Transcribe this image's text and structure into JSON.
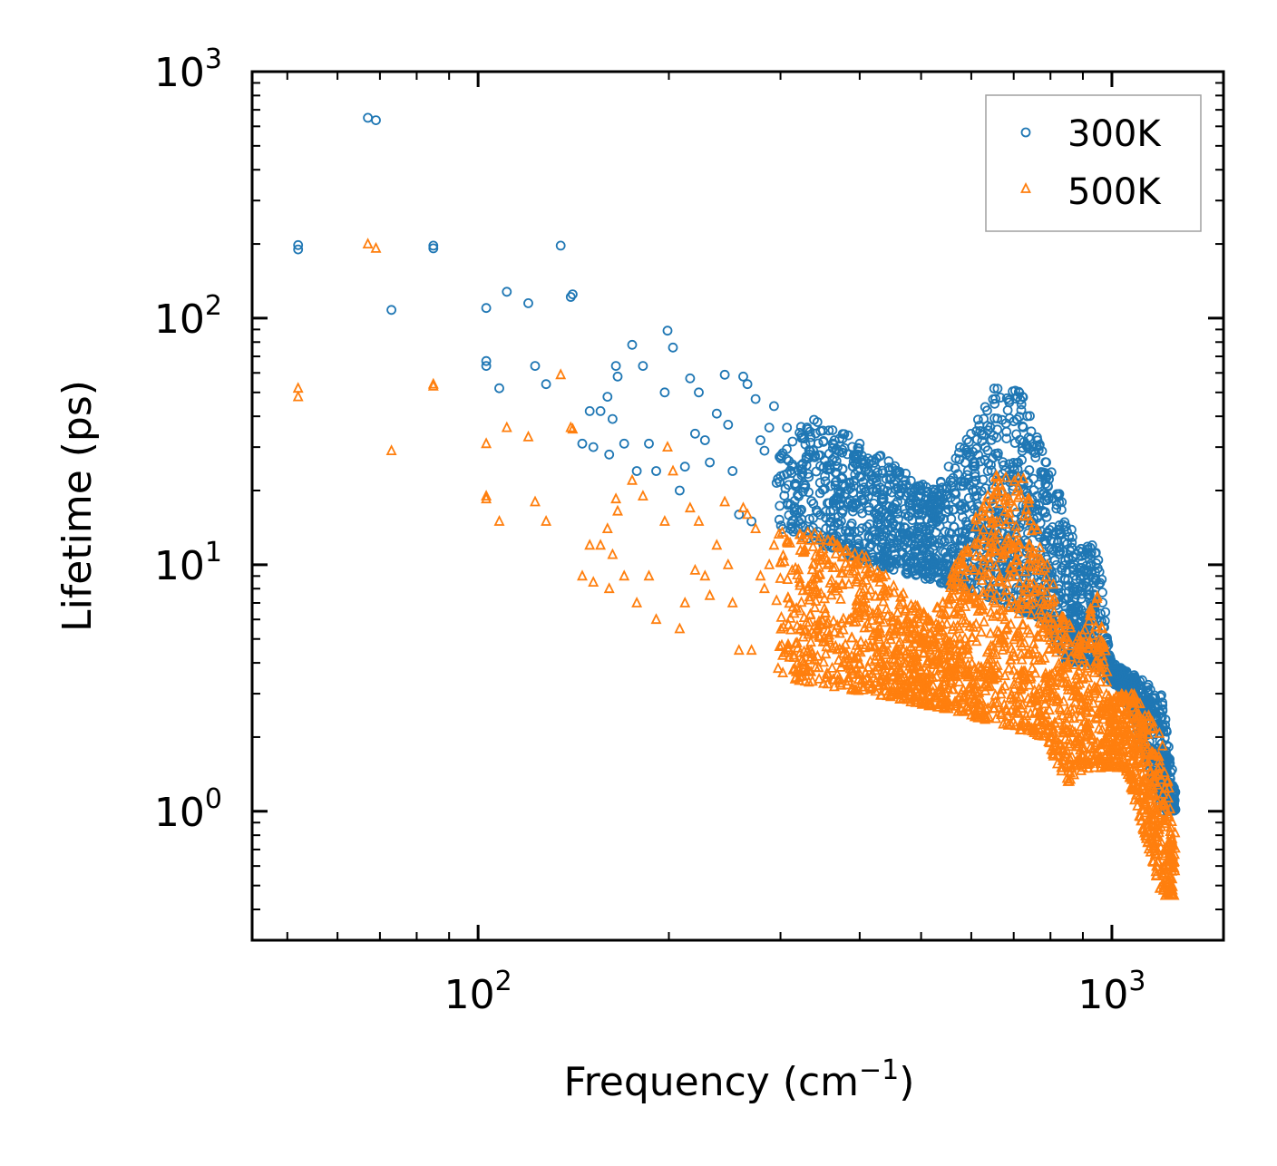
{
  "chart_data": {
    "type": "scatter",
    "xscale": "log",
    "yscale": "log",
    "xlim": [
      44,
      1500
    ],
    "ylim": [
      0.3,
      1000
    ],
    "xlabel": "Frequency (cm",
    "xlabel_sup": "−1",
    "xlabel_end": ")",
    "ylabel": "Lifetime (ps)",
    "x_ticks": [
      {
        "value": 100,
        "base": "10",
        "exp": "2"
      },
      {
        "value": 1000,
        "base": "10",
        "exp": "3"
      }
    ],
    "y_ticks": [
      {
        "value": 1,
        "base": "10",
        "exp": "0"
      },
      {
        "value": 10,
        "base": "10",
        "exp": "1"
      },
      {
        "value": 100,
        "base": "10",
        "exp": "2"
      },
      {
        "value": 1000,
        "base": "10",
        "exp": "3"
      }
    ],
    "legend_position": "top-right",
    "series": [
      {
        "name": "300K",
        "marker": "circle",
        "color": "#1f77b4",
        "points": [
          [
            52,
            198
          ],
          [
            52,
            190
          ],
          [
            67,
            650
          ],
          [
            69,
            635
          ],
          [
            73,
            108
          ],
          [
            85,
            197
          ],
          [
            85,
            192
          ],
          [
            103,
            110
          ],
          [
            103,
            67
          ],
          [
            103,
            64
          ],
          [
            108,
            52
          ],
          [
            111,
            128
          ],
          [
            120,
            115
          ],
          [
            123,
            64
          ],
          [
            128,
            54
          ],
          [
            135,
            197
          ],
          [
            140,
            122
          ],
          [
            141,
            125
          ],
          [
            146,
            31
          ],
          [
            150,
            42
          ],
          [
            152,
            30
          ],
          [
            156,
            42
          ],
          [
            160,
            48
          ],
          [
            161,
            28
          ],
          [
            163,
            39
          ],
          [
            165,
            64
          ],
          [
            166,
            58
          ],
          [
            170,
            31
          ],
          [
            175,
            78
          ],
          [
            178,
            24
          ],
          [
            182,
            64
          ],
          [
            186,
            31
          ],
          [
            191,
            24
          ],
          [
            197,
            50
          ],
          [
            199,
            89
          ],
          [
            203,
            76
          ],
          [
            208,
            20
          ],
          [
            212,
            25
          ],
          [
            216,
            57
          ],
          [
            220,
            34
          ],
          [
            223,
            50
          ],
          [
            228,
            32
          ],
          [
            232,
            26
          ],
          [
            238,
            41
          ],
          [
            245,
            59
          ],
          [
            248,
            37
          ],
          [
            252,
            24
          ],
          [
            258,
            16
          ],
          [
            262,
            58
          ],
          [
            266,
            54
          ],
          [
            270,
            15
          ],
          [
            274,
            47
          ],
          [
            279,
            32
          ],
          [
            283,
            29
          ],
          [
            288,
            36
          ],
          [
            293,
            44
          ]
        ],
        "peaks": [
          [
            380,
            35
          ],
          [
            520,
            20
          ],
          [
            660,
            55
          ],
          [
            720,
            50
          ],
          [
            800,
            25
          ],
          [
            880,
            12
          ],
          [
            950,
            12
          ]
        ],
        "valleys": [
          [
            300,
            14
          ],
          [
            420,
            10
          ],
          [
            580,
            8
          ],
          [
            780,
            6
          ],
          [
            850,
            4
          ],
          [
            920,
            4
          ],
          [
            1050,
            3
          ],
          [
            1200,
            1.0
          ]
        ]
      },
      {
        "name": "500K",
        "marker": "triangle",
        "color": "#ff7f0e",
        "points": [
          [
            52,
            52
          ],
          [
            52,
            48
          ],
          [
            67,
            200
          ],
          [
            69,
            192
          ],
          [
            73,
            29
          ],
          [
            85,
            54
          ],
          [
            85,
            53
          ],
          [
            103,
            31
          ],
          [
            103,
            19
          ],
          [
            103,
            18.5
          ],
          [
            108,
            15
          ],
          [
            111,
            36
          ],
          [
            120,
            33
          ],
          [
            123,
            18
          ],
          [
            128,
            15
          ],
          [
            135,
            59
          ],
          [
            140,
            36
          ],
          [
            141,
            35.5
          ],
          [
            146,
            9
          ],
          [
            150,
            12
          ],
          [
            152,
            8.5
          ],
          [
            156,
            12
          ],
          [
            160,
            14
          ],
          [
            161,
            8
          ],
          [
            163,
            11
          ],
          [
            165,
            18.5
          ],
          [
            166,
            16.5
          ],
          [
            170,
            9
          ],
          [
            175,
            22
          ],
          [
            178,
            7
          ],
          [
            182,
            19
          ],
          [
            186,
            9
          ],
          [
            191,
            6
          ],
          [
            197,
            15
          ],
          [
            199,
            30
          ],
          [
            203,
            24
          ],
          [
            208,
            5.5
          ],
          [
            212,
            7
          ],
          [
            216,
            17
          ],
          [
            220,
            9.5
          ],
          [
            223,
            15
          ],
          [
            228,
            9
          ],
          [
            232,
            7.5
          ],
          [
            238,
            12
          ],
          [
            245,
            18
          ],
          [
            248,
            10
          ],
          [
            252,
            7
          ],
          [
            258,
            4.5
          ],
          [
            262,
            17
          ],
          [
            266,
            16
          ],
          [
            270,
            4.5
          ],
          [
            274,
            14
          ],
          [
            279,
            9
          ],
          [
            283,
            8
          ],
          [
            288,
            10
          ],
          [
            293,
            12
          ]
        ],
        "peaks": [
          [
            380,
            13
          ],
          [
            520,
            6
          ],
          [
            660,
            25
          ],
          [
            720,
            24
          ],
          [
            800,
            9
          ],
          [
            880,
            5
          ],
          [
            950,
            8
          ]
        ],
        "valleys": [
          [
            300,
            3.5
          ],
          [
            420,
            3
          ],
          [
            580,
            2.5
          ],
          [
            780,
            2
          ],
          [
            850,
            1.3
          ],
          [
            920,
            1.5
          ],
          [
            1050,
            1.5
          ],
          [
            1200,
            0.45
          ]
        ]
      }
    ]
  }
}
